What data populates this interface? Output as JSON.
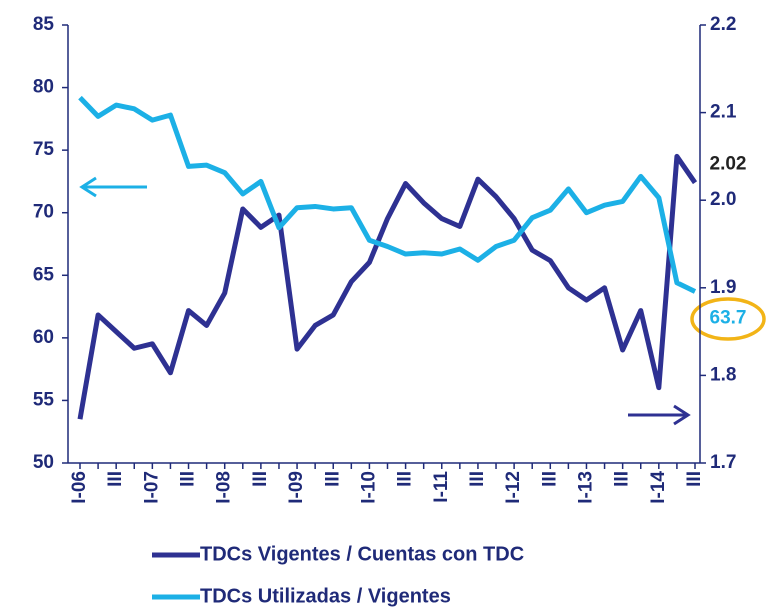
{
  "chart_data": {
    "type": "line",
    "categories": [
      "I-06",
      null,
      "III",
      null,
      "I-07",
      null,
      "III",
      null,
      "I-08",
      null,
      "III",
      null,
      "I-09",
      null,
      "III",
      null,
      "I-10",
      null,
      "III",
      null,
      "I-11",
      null,
      "III",
      null,
      "I-12",
      null,
      "III",
      null,
      "I-13",
      null,
      "III",
      null,
      "I-14",
      null,
      "III"
    ],
    "ylim": [
      50,
      85
    ],
    "yticks": [
      50,
      55,
      60,
      65,
      70,
      75,
      80,
      85
    ],
    "y2lim": [
      1.7,
      2.2
    ],
    "y2ticks": [
      1.7,
      1.8,
      1.9,
      {
        "value": 2,
        "label": "2.0"
      },
      2.1,
      2.2
    ],
    "grid": false,
    "legend": "bottom",
    "series": [
      {
        "name": "TDCs Vigentes / Cuentas con TDC",
        "color": "#2e3192",
        "axis": "y2",
        "values": [
          1.75,
          1.869,
          1.85,
          1.831,
          1.836,
          1.803,
          1.874,
          1.857,
          1.894,
          1.99,
          1.969,
          1.983,
          1.83,
          1.857,
          1.869,
          1.907,
          1.929,
          1.979,
          2.019,
          1.997,
          1.979,
          1.97,
          2.024,
          2.004,
          1.979,
          1.943,
          1.931,
          1.9,
          1.886,
          1.9,
          1.829,
          1.874,
          1.786,
          2.05,
          2.02
        ],
        "value_labels": [
          null,
          null,
          null,
          null,
          null,
          null,
          null,
          null,
          null,
          null,
          null,
          null,
          null,
          null,
          null,
          null,
          null,
          null,
          null,
          null,
          null,
          null,
          null,
          null,
          null,
          null,
          null,
          null,
          null,
          null,
          null,
          null,
          null,
          null,
          "2.02"
        ]
      },
      {
        "name": "TDCs Utilizadas / Vigentes",
        "color": "#1cb0e6",
        "values": [
          79.2,
          77.7,
          78.6,
          78.3,
          77.4,
          77.8,
          73.7,
          73.8,
          73.2,
          71.5,
          72.5,
          68.8,
          70.4,
          70.5,
          70.3,
          70.4,
          67.8,
          67.3,
          66.7,
          66.8,
          66.7,
          67.1,
          66.2,
          67.3,
          67.8,
          69.6,
          70.2,
          71.9,
          70.0,
          70.6,
          70.9,
          72.9,
          71.2,
          64.4,
          63.7
        ],
        "value_labels": [
          null,
          null,
          null,
          null,
          null,
          null,
          null,
          null,
          null,
          null,
          null,
          null,
          null,
          null,
          null,
          null,
          null,
          null,
          null,
          null,
          null,
          null,
          null,
          null,
          null,
          null,
          null,
          null,
          null,
          null,
          null,
          null,
          null,
          null,
          "63.7"
        ]
      }
    ]
  }
}
